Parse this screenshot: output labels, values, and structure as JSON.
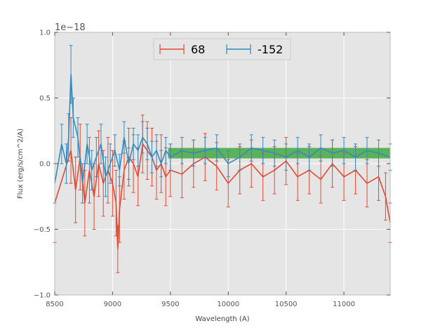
{
  "chart_data": {
    "type": "line",
    "title": "",
    "xlabel": "Wavelength (A)",
    "ylabel": "Flux (erg/s/cm^2/A)",
    "y_offset_label": "1e−18",
    "xlim": [
      8500,
      11400
    ],
    "ylim": [
      -1.0,
      1.0
    ],
    "xticks": [
      8500,
      9000,
      9500,
      10000,
      10500,
      11000
    ],
    "xtick_labels": [
      "8500",
      "9000",
      "9500",
      "10000",
      "10500",
      "11000"
    ],
    "yticks": [
      -1.0,
      -0.5,
      0.0,
      0.5,
      1.0
    ],
    "ytick_labels": [
      "−1.0",
      "−0.5",
      "0.0",
      "0.5",
      "1.0"
    ],
    "grid": true,
    "background": "#e5e5e5",
    "legend": {
      "location": "upper center",
      "ncol": 2
    },
    "band": {
      "x0": 9480,
      "x1": 11400,
      "y0": 0.04,
      "y1": 0.12,
      "color": "#2ca02c"
    },
    "series": [
      {
        "name": "68",
        "color": "#e24a33",
        "x": [
          8500,
          8640,
          8680,
          8720,
          8760,
          8800,
          8840,
          8880,
          8920,
          8960,
          9000,
          9030,
          9045,
          9060,
          9100,
          9140,
          9180,
          9220,
          9260,
          9300,
          9340,
          9380,
          9420,
          9460,
          9500,
          9600,
          9700,
          9800,
          9900,
          10000,
          10100,
          10200,
          10300,
          10400,
          10500,
          10600,
          10700,
          10800,
          10900,
          11000,
          11100,
          11200,
          11300,
          11360,
          11400
        ],
        "y": [
          -0.3,
          0.1,
          -0.2,
          0.05,
          -0.3,
          -0.05,
          -0.25,
          0.0,
          -0.15,
          -0.05,
          -0.15,
          -0.3,
          -0.65,
          -0.35,
          -0.05,
          0.05,
          0.0,
          -0.1,
          0.15,
          0.1,
          0.05,
          -0.05,
          0.0,
          -0.1,
          -0.05,
          -0.08,
          0.0,
          0.05,
          -0.02,
          -0.15,
          -0.05,
          0.0,
          -0.1,
          -0.05,
          0.02,
          -0.1,
          -0.05,
          -0.12,
          0.0,
          -0.1,
          -0.05,
          -0.15,
          -0.1,
          -0.25,
          -0.45
        ],
        "err": [
          0.3,
          0.25,
          0.25,
          0.25,
          0.25,
          0.25,
          0.25,
          0.25,
          0.25,
          0.25,
          0.25,
          0.25,
          0.18,
          0.25,
          0.22,
          0.22,
          0.22,
          0.22,
          0.22,
          0.22,
          0.22,
          0.22,
          0.22,
          0.22,
          0.2,
          0.18,
          0.18,
          0.18,
          0.18,
          0.18,
          0.18,
          0.18,
          0.18,
          0.18,
          0.18,
          0.18,
          0.18,
          0.18,
          0.18,
          0.18,
          0.18,
          0.18,
          0.18,
          0.18,
          0.15
        ]
      },
      {
        "name": "-152",
        "color": "#348abd",
        "x": [
          8500,
          8560,
          8600,
          8620,
          8640,
          8660,
          8700,
          8740,
          8780,
          8820,
          8860,
          8900,
          8940,
          8980,
          9020,
          9060,
          9100,
          9140,
          9180,
          9220,
          9260,
          9300,
          9340,
          9380,
          9420,
          9460,
          9500,
          9600,
          9700,
          9800,
          9900,
          10000,
          10100,
          10200,
          10300,
          10400,
          10500,
          10600,
          10700,
          10800,
          10900,
          11000,
          11100,
          11200,
          11300,
          11400
        ],
        "y": [
          -0.15,
          0.15,
          0.0,
          0.2,
          0.68,
          0.35,
          0.2,
          -0.15,
          0.15,
          -0.05,
          0.05,
          0.15,
          -0.1,
          0.0,
          0.1,
          -0.05,
          0.2,
          0.0,
          0.15,
          0.1,
          0.2,
          0.15,
          0.05,
          0.1,
          0.0,
          0.1,
          0.05,
          0.1,
          0.08,
          0.1,
          0.12,
          0.0,
          0.05,
          0.12,
          0.1,
          0.08,
          0.05,
          0.1,
          0.05,
          0.12,
          0.08,
          0.1,
          0.05,
          0.1,
          0.08,
          0.05
        ],
        "err": [
          0.15,
          0.15,
          0.15,
          0.18,
          0.22,
          0.15,
          0.15,
          0.15,
          0.15,
          0.15,
          0.15,
          0.15,
          0.15,
          0.15,
          0.12,
          0.12,
          0.12,
          0.12,
          0.12,
          0.12,
          0.12,
          0.12,
          0.12,
          0.12,
          0.1,
          0.1,
          0.1,
          0.1,
          0.1,
          0.1,
          0.1,
          0.1,
          0.1,
          0.1,
          0.1,
          0.1,
          0.1,
          0.1,
          0.1,
          0.1,
          0.1,
          0.1,
          0.1,
          0.1,
          0.1,
          0.1
        ]
      }
    ]
  }
}
